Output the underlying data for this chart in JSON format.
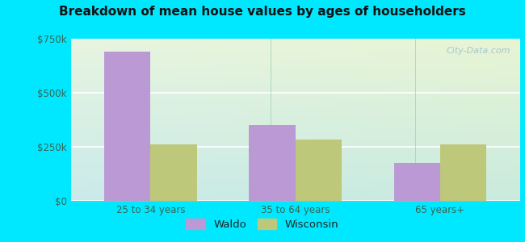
{
  "title": "Breakdown of mean house values by ages of householders",
  "categories": [
    "25 to 34 years",
    "35 to 64 years",
    "65 years+"
  ],
  "waldo_values": [
    690000,
    350000,
    175000
  ],
  "wisconsin_values": [
    260000,
    285000,
    262000
  ],
  "waldo_color": "#bb99d4",
  "wisconsin_color": "#bec87a",
  "ylim": [
    0,
    750000
  ],
  "yticks": [
    0,
    250000,
    500000,
    750000
  ],
  "ytick_labels": [
    "$0",
    "$250k",
    "$500k",
    "$750k"
  ],
  "background_outer": "#00e8ff",
  "watermark": "City-Data.com",
  "legend_labels": [
    "Waldo",
    "Wisconsin"
  ],
  "bar_width": 0.32
}
